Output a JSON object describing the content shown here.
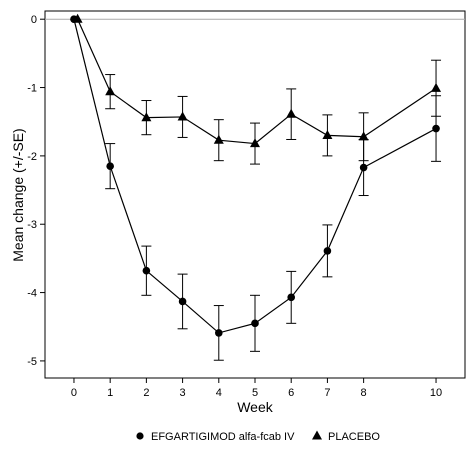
{
  "chart_data": {
    "type": "line",
    "title": "",
    "xlabel": "Week",
    "ylabel": "Mean change (+/-SE)",
    "xlim": [
      -0.8,
      10.8
    ],
    "ylim": [
      -5.25,
      0.12
    ],
    "x_ticks": [
      0,
      1,
      2,
      3,
      4,
      5,
      6,
      7,
      8,
      10
    ],
    "y_ticks": [
      0,
      -1,
      -2,
      -3,
      -4,
      -5
    ],
    "x_tick_labels": [
      "0",
      "1",
      "2",
      "3",
      "4",
      "5",
      "6",
      "7",
      "8",
      "10"
    ],
    "y_tick_labels": [
      "0",
      "-1",
      "-2",
      "-3",
      "-4",
      "-5"
    ],
    "reference_line_y": 0,
    "grid": false,
    "legend_position": "bottom",
    "series": [
      {
        "name": "EFGARTIGIMOD alfa-fcab IV",
        "marker": "circle",
        "color": "#000000",
        "x": [
          0,
          1,
          2,
          3,
          4,
          5,
          6,
          7,
          8,
          10
        ],
        "y": [
          0,
          -2.15,
          -3.68,
          -4.13,
          -4.59,
          -4.45,
          -4.07,
          -3.39,
          -2.17,
          -1.6
        ],
        "se": [
          0,
          0.33,
          0.36,
          0.4,
          0.4,
          0.41,
          0.38,
          0.38,
          0.41,
          0.48
        ]
      },
      {
        "name": "PLACEBO",
        "marker": "triangle",
        "color": "#000000",
        "x": [
          0.1,
          1,
          2,
          3,
          4,
          5,
          6,
          7,
          8,
          10
        ],
        "y": [
          0,
          -1.06,
          -1.44,
          -1.43,
          -1.77,
          -1.82,
          -1.39,
          -1.7,
          -1.72,
          -1.01
        ],
        "se": [
          0,
          0.25,
          0.25,
          0.3,
          0.3,
          0.3,
          0.37,
          0.3,
          0.35,
          0.41
        ]
      }
    ]
  }
}
